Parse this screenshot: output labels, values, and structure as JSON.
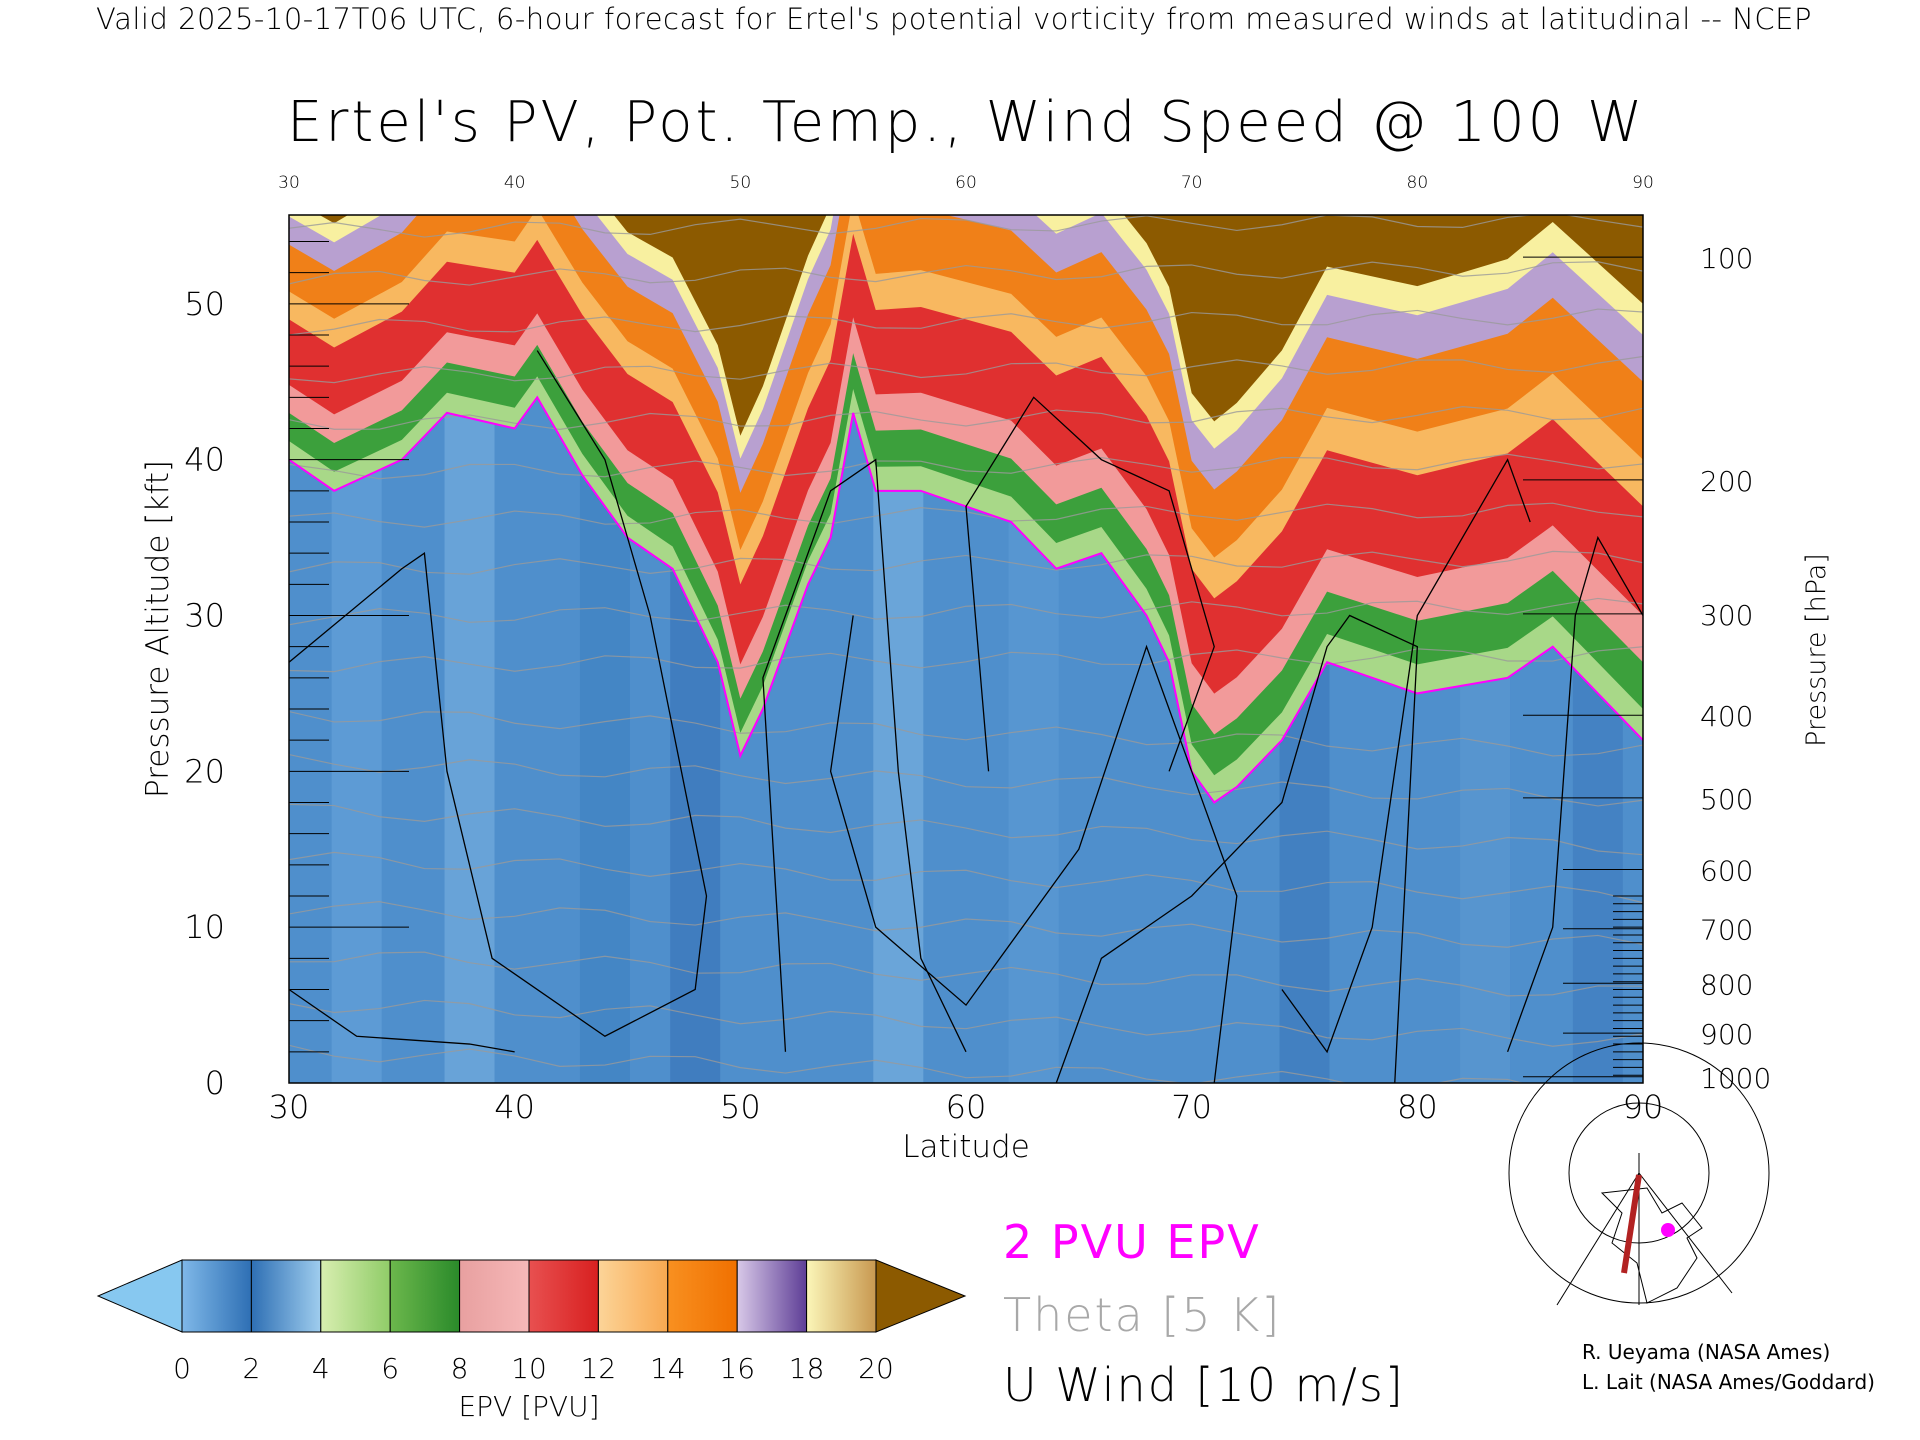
{
  "header": {
    "subtitle": "Valid 2025-10-17T06 UTC, 6-hour forecast for Ertel's potential vorticity from measured winds at latitudinal -- NCEP",
    "title": "Ertel's PV, Pot. Temp., Wind Speed @ 100 W"
  },
  "chart_data": {
    "type": "heatmap",
    "title": "Ertel's PV, Pot. Temp., Wind Speed @ 100 W",
    "xlabel": "Latitude",
    "ylabel": "Pressure Altitude [kft]",
    "ylabel_right": "Pressure [hPa]",
    "xlim": [
      30,
      90
    ],
    "ylim": [
      0,
      55.7
    ],
    "x_ticks": [
      "30",
      "40",
      "50",
      "60",
      "70",
      "80",
      "90"
    ],
    "y_ticks": [
      "0",
      "10",
      "20",
      "30",
      "40",
      "50"
    ],
    "y_tick_values": [
      0,
      10,
      20,
      30,
      40,
      50
    ],
    "pressure_ticks": [
      {
        "label": "100",
        "kft": 53.0
      },
      {
        "label": "200",
        "kft": 38.7
      },
      {
        "label": "300",
        "kft": 30.1
      },
      {
        "label": "400",
        "kft": 23.6
      },
      {
        "label": "500",
        "kft": 18.3
      },
      {
        "label": "600",
        "kft": 13.7
      },
      {
        "label": "700",
        "kft": 9.9
      },
      {
        "label": "800",
        "kft": 6.4
      },
      {
        "label": "900",
        "kft": 3.2
      },
      {
        "label": "1000",
        "kft": 0.4
      }
    ],
    "tropopause_2pvu": {
      "lat": [
        30,
        32,
        35,
        37,
        40,
        41,
        43,
        45,
        47,
        49,
        50,
        51,
        52,
        53,
        54,
        55,
        56,
        58,
        60,
        62,
        64,
        66,
        68,
        69,
        70,
        71,
        72,
        74,
        76,
        78,
        80,
        84,
        86,
        88,
        90
      ],
      "kft": [
        40,
        38,
        40,
        43,
        42,
        44,
        39,
        35,
        33,
        27,
        21,
        24,
        28,
        32,
        35,
        43,
        38,
        38,
        37,
        36,
        33,
        34,
        30,
        27,
        20,
        18,
        19,
        22,
        27,
        26,
        25,
        26,
        28,
        25,
        22
      ]
    },
    "colorbar": {
      "label": "EPV [PVU]",
      "ticks": [
        "0",
        "2",
        "4",
        "6",
        "8",
        "10",
        "12",
        "14",
        "16",
        "18",
        "20"
      ],
      "colors": [
        "#87c8f0",
        "#3a7fc4",
        "#a8d888",
        "#3ca03c",
        "#f29a9a",
        "#e03030",
        "#f8b860",
        "#f08018",
        "#c0a8d8",
        "#f8f0a0",
        "#8c5a00"
      ]
    },
    "legend": {
      "pv": "2 PVU EPV",
      "theta": "Theta [5 K]",
      "wind": "U Wind [10 m/s]",
      "pv_color": "#ff00ff",
      "theta_color": "#a0a0a0",
      "wind_color": "#000000"
    }
  },
  "credits": [
    "R. Ueyama (NASA Ames)",
    "L. Lait (NASA Ames/Goddard)"
  ]
}
